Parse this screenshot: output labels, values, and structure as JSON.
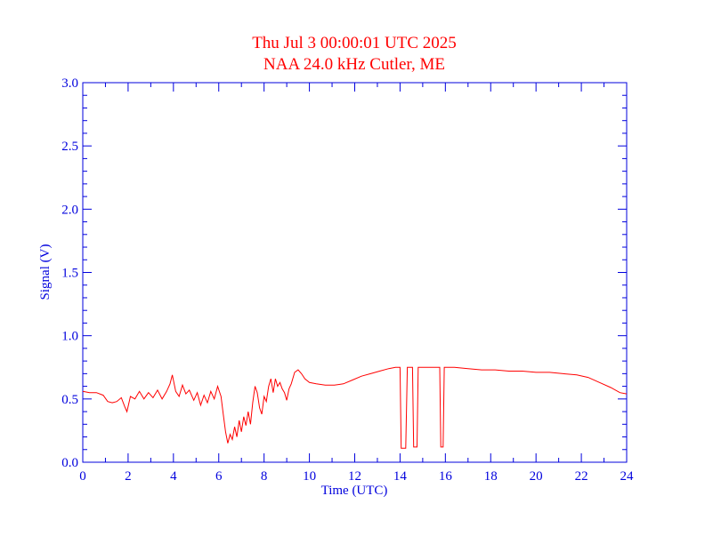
{
  "colors": {
    "axis": "#0000dd",
    "title": "#ff0000",
    "trace": "#ff0000",
    "background": "#ffffff"
  },
  "chart_data": {
    "type": "line",
    "title": "Thu Jul 3 00:00:01 UTC 2025",
    "subtitle": "NAA 24.0 kHz Cutler, ME",
    "xlabel": "Time (UTC)",
    "ylabel": "Signal (V)",
    "xlim": [
      0,
      24
    ],
    "ylim": [
      0,
      3.0
    ],
    "x_ticks": [
      0,
      2,
      4,
      6,
      8,
      10,
      12,
      14,
      16,
      18,
      20,
      22,
      24
    ],
    "y_ticks": [
      0.0,
      0.5,
      1.0,
      1.5,
      2.0,
      2.5,
      3.0
    ],
    "x_tick_labels": [
      "0",
      "2",
      "4",
      "6",
      "8",
      "10",
      "12",
      "14",
      "16",
      "18",
      "20",
      "22",
      "24"
    ],
    "y_tick_labels": [
      "0.0",
      "0.5",
      "1.0",
      "1.5",
      "2.0",
      "2.5",
      "3.0"
    ],
    "grid": false,
    "series": [
      {
        "points": [
          [
            0.0,
            0.56
          ],
          [
            0.3,
            0.55
          ],
          [
            0.6,
            0.55
          ],
          [
            0.9,
            0.53
          ],
          [
            1.1,
            0.48
          ],
          [
            1.3,
            0.47
          ],
          [
            1.5,
            0.48
          ],
          [
            1.7,
            0.51
          ],
          [
            1.85,
            0.44
          ],
          [
            1.95,
            0.4
          ],
          [
            2.1,
            0.52
          ],
          [
            2.3,
            0.5
          ],
          [
            2.5,
            0.56
          ],
          [
            2.7,
            0.5
          ],
          [
            2.9,
            0.55
          ],
          [
            3.1,
            0.51
          ],
          [
            3.3,
            0.57
          ],
          [
            3.5,
            0.5
          ],
          [
            3.7,
            0.56
          ],
          [
            3.85,
            0.62
          ],
          [
            3.95,
            0.69
          ],
          [
            4.1,
            0.56
          ],
          [
            4.25,
            0.52
          ],
          [
            4.4,
            0.61
          ],
          [
            4.55,
            0.54
          ],
          [
            4.7,
            0.57
          ],
          [
            4.9,
            0.49
          ],
          [
            5.05,
            0.55
          ],
          [
            5.2,
            0.45
          ],
          [
            5.35,
            0.53
          ],
          [
            5.5,
            0.47
          ],
          [
            5.65,
            0.56
          ],
          [
            5.8,
            0.5
          ],
          [
            5.95,
            0.6
          ],
          [
            6.1,
            0.52
          ],
          [
            6.2,
            0.38
          ],
          [
            6.3,
            0.24
          ],
          [
            6.4,
            0.15
          ],
          [
            6.5,
            0.22
          ],
          [
            6.6,
            0.18
          ],
          [
            6.7,
            0.28
          ],
          [
            6.8,
            0.2
          ],
          [
            6.9,
            0.33
          ],
          [
            7.0,
            0.24
          ],
          [
            7.1,
            0.36
          ],
          [
            7.2,
            0.29
          ],
          [
            7.3,
            0.4
          ],
          [
            7.4,
            0.3
          ],
          [
            7.5,
            0.47
          ],
          [
            7.6,
            0.6
          ],
          [
            7.7,
            0.55
          ],
          [
            7.8,
            0.43
          ],
          [
            7.9,
            0.38
          ],
          [
            8.0,
            0.52
          ],
          [
            8.1,
            0.48
          ],
          [
            8.2,
            0.6
          ],
          [
            8.3,
            0.66
          ],
          [
            8.4,
            0.55
          ],
          [
            8.5,
            0.66
          ],
          [
            8.6,
            0.6
          ],
          [
            8.7,
            0.63
          ],
          [
            8.8,
            0.58
          ],
          [
            8.9,
            0.55
          ],
          [
            9.0,
            0.49
          ],
          [
            9.1,
            0.58
          ],
          [
            9.2,
            0.62
          ],
          [
            9.35,
            0.71
          ],
          [
            9.5,
            0.73
          ],
          [
            9.65,
            0.7
          ],
          [
            9.8,
            0.66
          ],
          [
            10.0,
            0.63
          ],
          [
            10.3,
            0.62
          ],
          [
            10.7,
            0.61
          ],
          [
            11.1,
            0.61
          ],
          [
            11.5,
            0.62
          ],
          [
            11.9,
            0.65
          ],
          [
            12.3,
            0.68
          ],
          [
            12.7,
            0.7
          ],
          [
            13.1,
            0.72
          ],
          [
            13.5,
            0.74
          ],
          [
            13.8,
            0.75
          ],
          [
            14.0,
            0.75
          ],
          [
            14.05,
            0.11
          ],
          [
            14.25,
            0.11
          ],
          [
            14.32,
            0.75
          ],
          [
            14.55,
            0.75
          ],
          [
            14.6,
            0.12
          ],
          [
            14.75,
            0.12
          ],
          [
            14.8,
            0.75
          ],
          [
            15.1,
            0.75
          ],
          [
            15.4,
            0.75
          ],
          [
            15.75,
            0.75
          ],
          [
            15.8,
            0.12
          ],
          [
            15.9,
            0.12
          ],
          [
            15.95,
            0.75
          ],
          [
            16.4,
            0.75
          ],
          [
            17.0,
            0.74
          ],
          [
            17.6,
            0.73
          ],
          [
            18.2,
            0.73
          ],
          [
            18.8,
            0.72
          ],
          [
            19.4,
            0.72
          ],
          [
            20.0,
            0.71
          ],
          [
            20.6,
            0.71
          ],
          [
            21.2,
            0.7
          ],
          [
            21.8,
            0.69
          ],
          [
            22.3,
            0.67
          ],
          [
            22.8,
            0.63
          ],
          [
            23.3,
            0.59
          ],
          [
            23.7,
            0.55
          ],
          [
            24.0,
            0.54
          ]
        ]
      }
    ]
  }
}
